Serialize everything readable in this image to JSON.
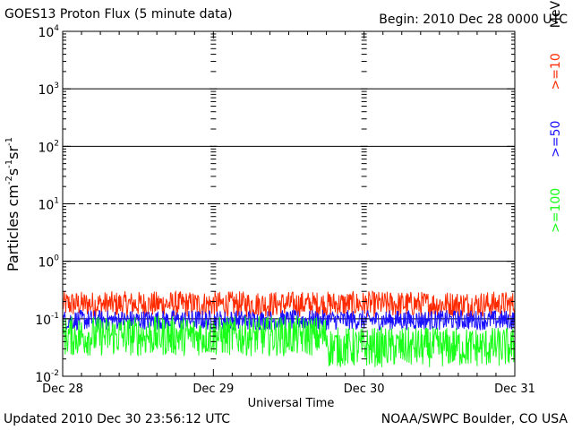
{
  "header": {
    "title": "GOES13 Proton Flux (5 minute data)",
    "begin": "Begin: 2010 Dec 28 0000 UTC"
  },
  "footer": {
    "updated": "Updated 2010 Dec 30 23:56:12 UTC",
    "source": "NOAA/SWPC Boulder, CO USA"
  },
  "chart_data": {
    "type": "line",
    "title": "GOES13 Proton Flux (5 minute data)",
    "xlabel": "Universal Time",
    "ylabel": "Particles cm⁻²s⁻¹sr⁻¹",
    "x_ticks": [
      "Dec 28",
      "Dec 29",
      "Dec 30",
      "Dec 31"
    ],
    "y_ticks": [
      {
        "base": "10",
        "exp": "-2",
        "value": 0.01
      },
      {
        "base": "10",
        "exp": "-1",
        "value": 0.1
      },
      {
        "base": "10",
        "exp": "0",
        "value": 1
      },
      {
        "base": "10",
        "exp": "1",
        "value": 10
      },
      {
        "base": "10",
        "exp": "2",
        "value": 100
      },
      {
        "base": "10",
        "exp": "3",
        "value": 1000
      },
      {
        "base": "10",
        "exp": "4",
        "value": 10000
      }
    ],
    "y_scale": "log",
    "ylim": [
      0.01,
      10000
    ],
    "x_range_days": [
      0,
      3
    ],
    "threshold_lines": [
      {
        "value": 1000,
        "style": "solid"
      },
      {
        "value": 100,
        "style": "solid"
      },
      {
        "value": 10,
        "style": "dashed"
      },
      {
        "value": 1,
        "style": "solid"
      },
      {
        "value": 0.1,
        "style": "solid"
      }
    ],
    "energy_unit": "MeV",
    "series": [
      {
        "name": ">=10",
        "color": "#ff2a00",
        "base": 0.18,
        "spread": 0.45
      },
      {
        "name": ">=50",
        "color": "#1a10ff",
        "base": 0.095,
        "spread": 0.35
      },
      {
        "name": ">=100",
        "color": "#19ff19",
        "base": 0.05,
        "spread": 0.7,
        "base_after_dec30": 0.032
      }
    ]
  }
}
